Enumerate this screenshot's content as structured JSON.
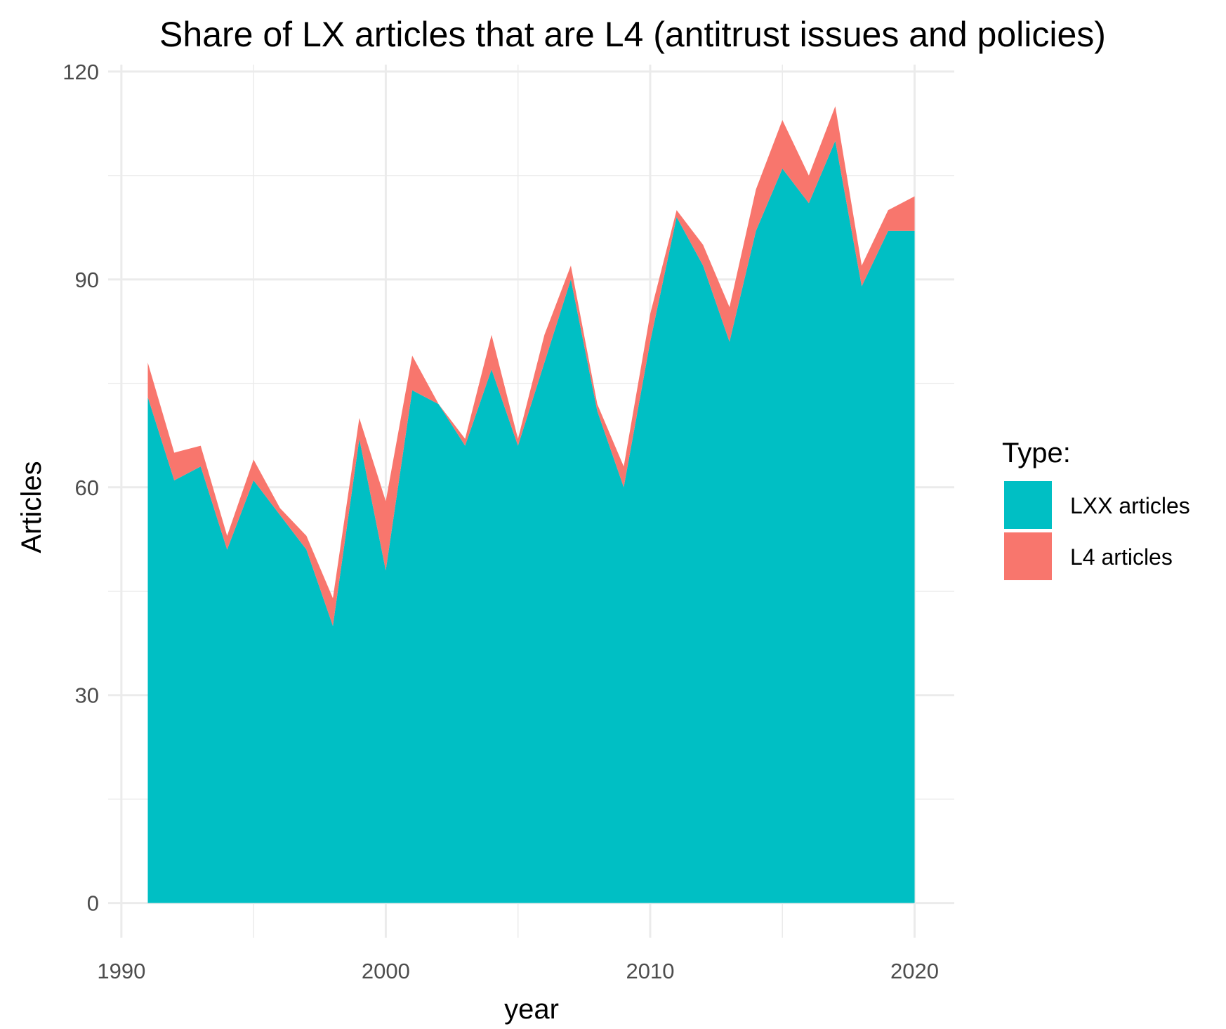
{
  "chart_data": {
    "type": "area",
    "stacked": true,
    "title": "Share of LX articles that are L4 (antitrust issues and policies)",
    "xlabel": "year",
    "ylabel": "Articles",
    "xlim": [
      1989.5,
      2021.5
    ],
    "ylim": [
      -5,
      121
    ],
    "x_ticks": [
      1990,
      2000,
      2010,
      2020
    ],
    "y_ticks": [
      0,
      30,
      60,
      90,
      120
    ],
    "grid": true,
    "legend": {
      "title": "Type:",
      "position": "right"
    },
    "x": [
      1991,
      1992,
      1993,
      1994,
      1995,
      1996,
      1997,
      1998,
      1999,
      2000,
      2001,
      2002,
      2003,
      2004,
      2005,
      2006,
      2007,
      2008,
      2009,
      2010,
      2011,
      2012,
      2013,
      2014,
      2015,
      2016,
      2017,
      2018,
      2019,
      2020
    ],
    "series": [
      {
        "name": "LXX articles",
        "color": "#00BFC4",
        "values": [
          73,
          61,
          63,
          51,
          61,
          56,
          51,
          40,
          67,
          48,
          74,
          72,
          66,
          77,
          66,
          78,
          90,
          71,
          60,
          81,
          99,
          92,
          81,
          97,
          106,
          101,
          110,
          89,
          97,
          97
        ]
      },
      {
        "name": "L4 articles",
        "color": "#F8766D",
        "values": [
          5,
          4,
          3,
          2,
          3,
          1,
          2,
          4,
          3,
          10,
          5,
          0,
          1,
          5,
          1,
          4,
          2,
          1,
          3,
          4,
          1,
          3,
          5,
          6,
          7,
          4,
          5,
          3,
          3,
          5
        ]
      }
    ]
  }
}
